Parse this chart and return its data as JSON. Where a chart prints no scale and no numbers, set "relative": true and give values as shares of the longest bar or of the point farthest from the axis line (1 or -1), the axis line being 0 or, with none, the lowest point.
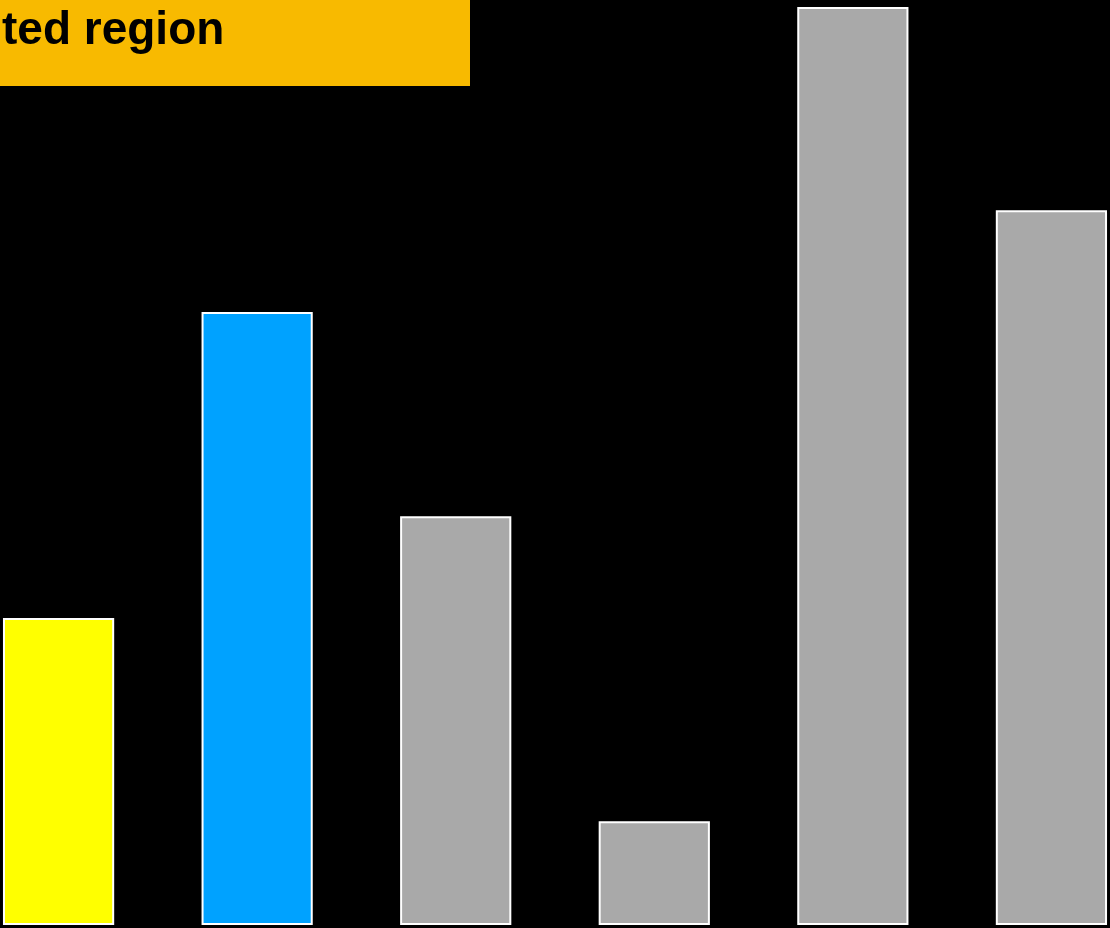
{
  "chart_data": {
    "type": "bar",
    "relative": true,
    "annotations": [
      "ted region"
    ],
    "categories": [
      null,
      null,
      null,
      null,
      null,
      null
    ],
    "values": [
      0.333,
      0.667,
      0.444,
      0.111,
      1,
      0.778
    ],
    "colors": [
      "#ffff00",
      "#00a2ff",
      "#a9a9a9",
      "#a9a9a9",
      "#a9a9a9",
      "#a9a9a9"
    ]
  }
}
